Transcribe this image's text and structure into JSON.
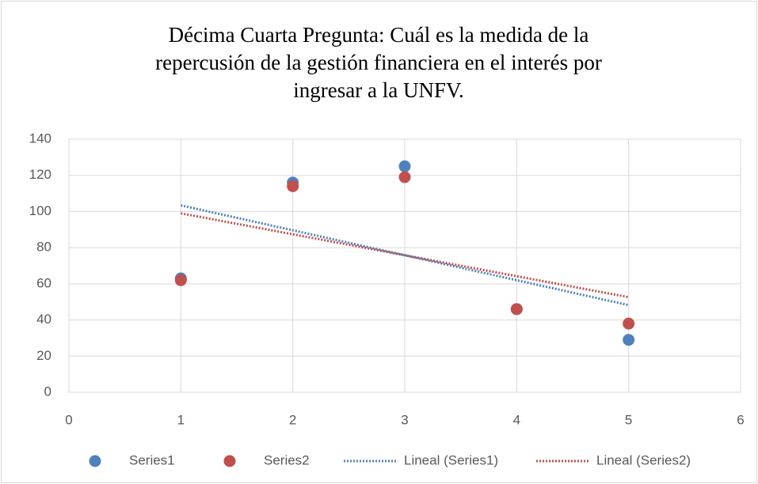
{
  "chart_data": {
    "type": "scatter",
    "title": [
      "Décima Cuarta Pregunta:  Cuál es la medida de la",
      "repercusión de la gestión financiera en el interés por",
      "ingresar a la UNFV."
    ],
    "x": [
      1,
      2,
      3,
      4,
      5
    ],
    "series": [
      {
        "name": "Series1",
        "color": "#4f81bd",
        "values": [
          63,
          116,
          125,
          46,
          29
        ]
      },
      {
        "name": "Series2",
        "color": "#c0504d",
        "values": [
          62,
          114,
          119,
          46,
          38
        ]
      }
    ],
    "trendlines": [
      {
        "name": "Lineal (Series1)",
        "series": 0,
        "color": "#4f81bd"
      },
      {
        "name": "Lineal (Series2)",
        "series": 1,
        "color": "#c0504d"
      }
    ],
    "xlim": [
      0,
      6
    ],
    "xticks": [
      0,
      1,
      2,
      3,
      4,
      5,
      6
    ],
    "ylim": [
      0,
      140
    ],
    "yticks": [
      0,
      20,
      40,
      60,
      80,
      100,
      120,
      140
    ],
    "grid": true,
    "legend": "bottom"
  }
}
